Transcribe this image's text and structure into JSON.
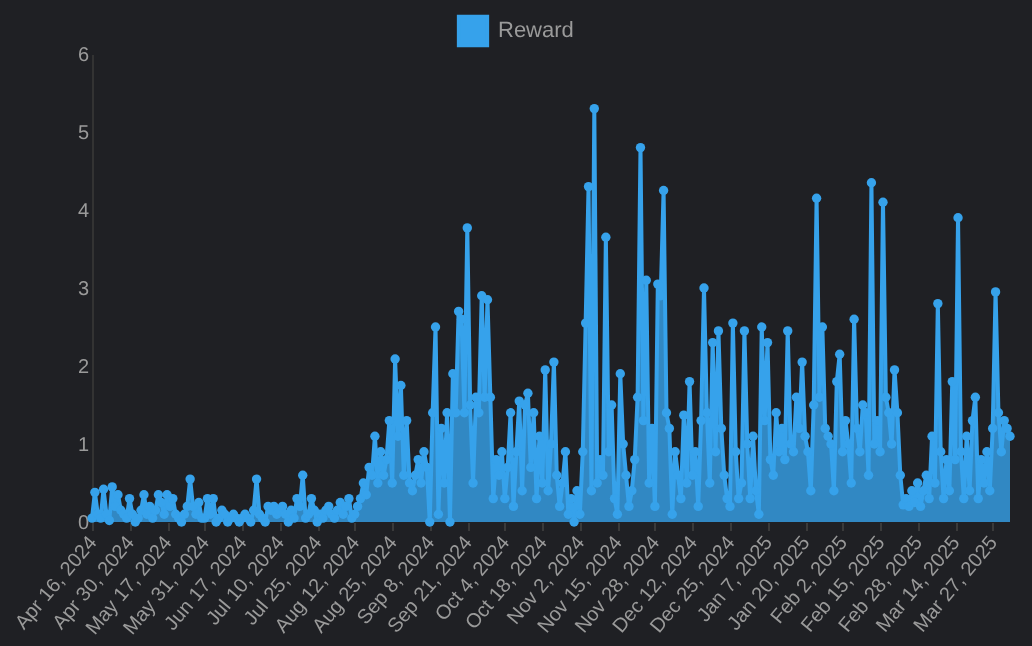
{
  "chart_data": {
    "type": "area",
    "legend": "top",
    "marker": "circle",
    "grid": false,
    "ylim": [
      0,
      6
    ],
    "yticks": [
      0,
      1,
      2,
      3,
      4,
      5,
      6
    ],
    "categories": [
      "Apr 16, 2024",
      null,
      null,
      null,
      null,
      null,
      null,
      null,
      null,
      null,
      null,
      null,
      null,
      "Apr 30, 2024",
      null,
      null,
      null,
      null,
      null,
      null,
      null,
      null,
      null,
      null,
      null,
      null,
      "May 17, 2024",
      null,
      null,
      null,
      null,
      null,
      null,
      null,
      null,
      null,
      null,
      null,
      null,
      "May 31, 2024",
      null,
      null,
      null,
      null,
      null,
      null,
      null,
      null,
      null,
      null,
      null,
      null,
      "Jun 17, 2024",
      null,
      null,
      null,
      null,
      null,
      null,
      null,
      null,
      null,
      null,
      null,
      null,
      "Jul 10, 2024",
      null,
      null,
      null,
      null,
      null,
      null,
      null,
      null,
      null,
      null,
      null,
      null,
      "Jul 25, 2024",
      null,
      null,
      null,
      null,
      null,
      null,
      null,
      null,
      null,
      null,
      null,
      null,
      "Aug 12, 2024",
      null,
      null,
      null,
      null,
      null,
      null,
      null,
      null,
      null,
      null,
      null,
      null,
      "Aug 25, 2024",
      null,
      null,
      null,
      null,
      null,
      null,
      null,
      null,
      null,
      null,
      null,
      null,
      "Sep 8, 2024",
      null,
      null,
      null,
      null,
      null,
      null,
      null,
      null,
      null,
      null,
      null,
      null,
      "Sep 21, 2024",
      null,
      null,
      null,
      null,
      null,
      null,
      null,
      null,
      null,
      null,
      null,
      null,
      "Oct 4, 2024",
      null,
      null,
      null,
      null,
      null,
      null,
      null,
      null,
      null,
      null,
      null,
      null,
      "Oct 18, 2024",
      null,
      null,
      null,
      null,
      null,
      null,
      null,
      null,
      null,
      null,
      null,
      null,
      "Nov 2, 2024",
      null,
      null,
      null,
      null,
      null,
      null,
      null,
      null,
      null,
      null,
      null,
      null,
      "Nov 15, 2024",
      null,
      null,
      null,
      null,
      null,
      null,
      null,
      null,
      null,
      null,
      null,
      null,
      "Nov 28, 2024",
      null,
      null,
      null,
      null,
      null,
      null,
      null,
      null,
      null,
      null,
      null,
      null,
      "Dec 12, 2024",
      null,
      null,
      null,
      null,
      null,
      null,
      null,
      null,
      null,
      null,
      null,
      null,
      "Dec 25, 2024",
      null,
      null,
      null,
      null,
      null,
      null,
      null,
      null,
      null,
      null,
      null,
      null,
      "Jan 7, 2025",
      null,
      null,
      null,
      null,
      null,
      null,
      null,
      null,
      null,
      null,
      null,
      null,
      "Jan 20, 2025",
      null,
      null,
      null,
      null,
      null,
      null,
      null,
      null,
      null,
      null,
      null,
      null,
      "Feb 2, 2025",
      null,
      null,
      null,
      null,
      null,
      null,
      null,
      null,
      null,
      null,
      null,
      null,
      "Feb 15, 2025",
      null,
      null,
      null,
      null,
      null,
      null,
      null,
      null,
      null,
      null,
      null,
      null,
      "Feb 28, 2025",
      null,
      null,
      null,
      null,
      null,
      null,
      null,
      null,
      null,
      null,
      null,
      null,
      "Mar 14, 2025",
      null,
      null,
      null,
      null,
      null,
      null,
      null,
      null,
      null,
      null,
      null,
      null,
      "Mar 27, 2025",
      null,
      null,
      null,
      null,
      null,
      null
    ],
    "series": [
      {
        "name": "Reward",
        "color": "#36a2eb",
        "values": [
          0.05,
          0.38,
          0.1,
          0.05,
          0.42,
          0.1,
          0.02,
          0.45,
          0.2,
          0.35,
          0.15,
          0.1,
          0.05,
          0.3,
          0.1,
          0.0,
          0.05,
          0.15,
          0.35,
          0.1,
          0.2,
          0.05,
          0.15,
          0.35,
          0.25,
          0.1,
          0.35,
          0.2,
          0.3,
          0.1,
          0.05,
          0.0,
          0.1,
          0.2,
          0.55,
          0.2,
          0.1,
          0.25,
          0.05,
          0.05,
          0.3,
          0.1,
          0.3,
          0.0,
          0.05,
          0.15,
          0.1,
          0.0,
          0.05,
          0.1,
          0.05,
          0.0,
          0.05,
          0.1,
          0.05,
          0.0,
          0.15,
          0.55,
          0.1,
          0.05,
          0.0,
          0.2,
          0.15,
          0.2,
          0.1,
          0.15,
          0.2,
          0.1,
          0.0,
          0.15,
          0.05,
          0.3,
          0.2,
          0.6,
          0.05,
          0.1,
          0.3,
          0.15,
          0.0,
          0.1,
          0.05,
          0.15,
          0.2,
          0.1,
          0.05,
          0.15,
          0.25,
          0.1,
          0.2,
          0.3,
          0.05,
          0.1,
          0.2,
          0.3,
          0.5,
          0.35,
          0.7,
          0.6,
          1.1,
          0.5,
          0.9,
          0.6,
          0.8,
          1.3,
          0.5,
          2.09,
          1.1,
          1.75,
          0.6,
          1.3,
          0.5,
          0.4,
          0.6,
          0.8,
          0.5,
          0.9,
          0.7,
          0.0,
          1.4,
          2.5,
          0.1,
          1.2,
          0.5,
          1.4,
          0.0,
          1.9,
          1.4,
          2.7,
          2.6,
          1.4,
          3.77,
          1.5,
          0.5,
          1.6,
          1.4,
          2.9,
          1.6,
          2.85,
          1.6,
          0.3,
          0.8,
          0.6,
          0.9,
          0.3,
          0.7,
          1.4,
          0.2,
          0.9,
          1.55,
          0.4,
          1.5,
          1.65,
          0.7,
          1.4,
          0.3,
          1.1,
          0.5,
          1.95,
          0.4,
          1.0,
          2.05,
          0.6,
          0.2,
          0.5,
          0.9,
          0.1,
          0.3,
          0.0,
          0.4,
          0.1,
          0.9,
          2.55,
          4.3,
          0.4,
          5.3,
          0.5,
          0.8,
          0.6,
          3.65,
          0.9,
          1.5,
          0.3,
          0.1,
          1.9,
          1.0,
          0.6,
          0.2,
          0.4,
          0.8,
          1.6,
          4.8,
          1.3,
          3.1,
          0.5,
          1.2,
          0.2,
          3.05,
          2.9,
          4.25,
          1.4,
          1.2,
          0.1,
          0.9,
          0.6,
          0.3,
          1.37,
          0.5,
          1.8,
          0.6,
          0.9,
          0.2,
          1.3,
          3.0,
          1.4,
          0.5,
          2.3,
          0.9,
          2.45,
          1.2,
          0.6,
          0.3,
          0.2,
          2.55,
          0.9,
          0.3,
          0.5,
          2.45,
          1.0,
          0.3,
          1.1,
          0.4,
          0.1,
          2.5,
          1.3,
          2.3,
          0.8,
          0.6,
          1.4,
          0.9,
          1.2,
          0.8,
          2.45,
          1.0,
          0.9,
          1.6,
          1.2,
          2.05,
          1.1,
          0.9,
          0.4,
          1.5,
          4.15,
          1.6,
          2.5,
          1.2,
          1.1,
          1.0,
          0.4,
          1.8,
          2.15,
          0.9,
          1.3,
          1.0,
          0.5,
          2.6,
          1.2,
          0.9,
          1.5,
          1.4,
          0.6,
          4.35,
          1.0,
          1.3,
          0.9,
          4.1,
          1.6,
          1.4,
          1.0,
          1.95,
          1.4,
          0.6,
          0.22,
          0.3,
          0.2,
          0.4,
          0.25,
          0.5,
          0.2,
          0.4,
          0.6,
          0.3,
          1.1,
          0.5,
          2.8,
          0.9,
          0.3,
          0.8,
          0.4,
          1.8,
          0.8,
          3.9,
          0.9,
          0.3,
          1.1,
          0.4,
          1.3,
          1.6,
          0.3,
          0.8,
          0.5,
          0.9,
          0.4,
          1.2,
          2.95,
          1.4,
          0.9,
          1.3,
          1.2,
          1.1
        ]
      }
    ]
  }
}
